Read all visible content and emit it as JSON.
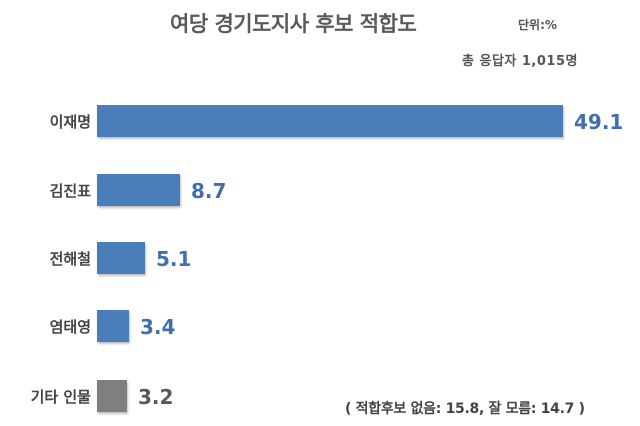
{
  "chart_data": {
    "type": "bar",
    "orientation": "horizontal",
    "title": "여당 경기도지사 후보 적합도",
    "unit_label": "단위:%",
    "respondents_label": "총 응답자 1,015명",
    "categories": [
      "이재명",
      "김진표",
      "전해철",
      "염태영",
      "기타 인물"
    ],
    "values": [
      49.1,
      8.7,
      5.1,
      3.4,
      3.2
    ],
    "value_labels": [
      "49.1",
      "8.7",
      "5.1",
      "3.4",
      "3.2"
    ],
    "bar_colors": [
      "#4a7ebb",
      "#4a7ebb",
      "#4a7ebb",
      "#4a7ebb",
      "#7f7f7f"
    ],
    "label_colors": [
      "#3f6fae",
      "#3f6fae",
      "#3f6fae",
      "#3f6fae",
      "#595959"
    ],
    "xlabel": "",
    "ylabel": "",
    "grid": false,
    "legend": "none",
    "note": "( 적합후보 없음: 15.8, 잘 모름: 14.7 )"
  }
}
